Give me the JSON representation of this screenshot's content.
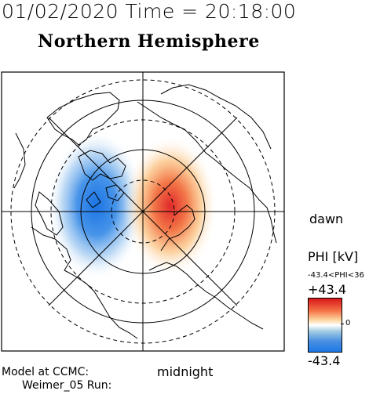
{
  "header": {
    "datetime": "01/02/2020 Time = 20:18:00",
    "hemisphere": "Northern Hemisphere"
  },
  "labels": {
    "dawn": "dawn",
    "midnight": "midnight",
    "model_line1": "Model at CCMC:",
    "model_line2": "Weimer_05 Run:"
  },
  "colorbar": {
    "title": "PHI [kV]",
    "range_text": "-43.4<PHI<36",
    "max_label": "+43.4",
    "zero_label": "0",
    "min_label": "-43.4",
    "colors": {
      "positive": "#d7191c",
      "neutral": "#ffffff",
      "negative": "#1e78e6"
    }
  },
  "potential": {
    "max_kv": 43.4,
    "min_kv": -43.4
  }
}
